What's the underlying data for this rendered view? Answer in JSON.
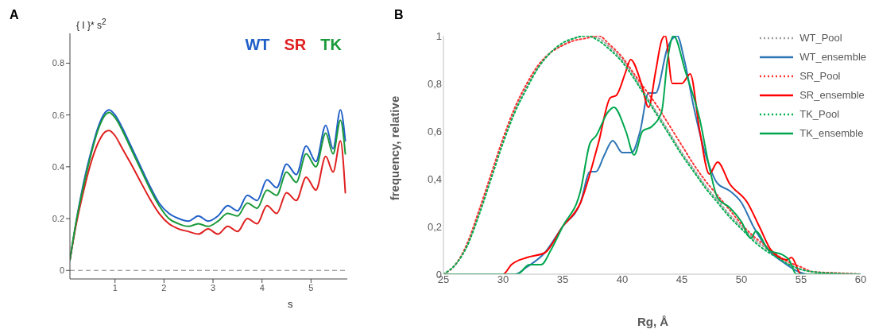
{
  "chart_data": [
    {
      "type": "line",
      "title": "A",
      "ylabel": "{ I }* s$^{2}$",
      "xlabel": "s",
      "xlim": [
        0.08,
        5.74
      ],
      "xticks": [
        1,
        2,
        3,
        4,
        5
      ],
      "ylim": [
        -0.033,
        0.915
      ],
      "yticks": [
        0,
        0.2,
        0.4,
        0.6,
        0.8
      ],
      "legend": "top right",
      "marker": "none",
      "ref_lines": [
        {
          "axis": "y",
          "value": 0,
          "line_style": "dashed",
          "color": "#808080"
        }
      ],
      "series": [
        {
          "name": "WT",
          "color": "#1f5fc8",
          "x": [
            0.08,
            0.2,
            0.35,
            0.5,
            0.65,
            0.8,
            0.88,
            1.0,
            1.15,
            1.3,
            1.5,
            1.7,
            1.9,
            2.1,
            2.3,
            2.5,
            2.7,
            2.9,
            3.1,
            3.3,
            3.5,
            3.7,
            3.9,
            4.1,
            4.3,
            4.5,
            4.7,
            4.9,
            5.1,
            5.3,
            5.45,
            5.6,
            5.7
          ],
          "values": [
            0.04,
            0.18,
            0.33,
            0.45,
            0.55,
            0.61,
            0.62,
            0.6,
            0.55,
            0.49,
            0.41,
            0.33,
            0.26,
            0.22,
            0.2,
            0.19,
            0.21,
            0.19,
            0.21,
            0.25,
            0.23,
            0.29,
            0.27,
            0.35,
            0.32,
            0.41,
            0.37,
            0.48,
            0.42,
            0.56,
            0.47,
            0.62,
            0.5
          ]
        },
        {
          "name": "SR",
          "color": "#e02020",
          "x": [
            0.08,
            0.2,
            0.35,
            0.5,
            0.65,
            0.8,
            0.88,
            1.0,
            1.15,
            1.3,
            1.5,
            1.7,
            1.9,
            2.1,
            2.3,
            2.5,
            2.7,
            2.9,
            3.1,
            3.3,
            3.5,
            3.7,
            3.9,
            4.1,
            4.3,
            4.5,
            4.7,
            4.9,
            5.1,
            5.3,
            5.45,
            5.6,
            5.7
          ],
          "values": [
            0.04,
            0.17,
            0.3,
            0.41,
            0.49,
            0.535,
            0.54,
            0.52,
            0.47,
            0.42,
            0.35,
            0.28,
            0.22,
            0.18,
            0.16,
            0.15,
            0.14,
            0.16,
            0.14,
            0.17,
            0.15,
            0.2,
            0.18,
            0.25,
            0.22,
            0.3,
            0.27,
            0.36,
            0.31,
            0.44,
            0.38,
            0.5,
            0.3
          ]
        },
        {
          "name": "TK",
          "color": "#1a9a3a",
          "x": [
            0.08,
            0.2,
            0.35,
            0.5,
            0.65,
            0.8,
            0.88,
            1.0,
            1.15,
            1.3,
            1.5,
            1.7,
            1.9,
            2.1,
            2.3,
            2.5,
            2.7,
            2.9,
            3.1,
            3.3,
            3.5,
            3.7,
            3.9,
            4.1,
            4.3,
            4.5,
            4.7,
            4.9,
            5.1,
            5.3,
            5.45,
            5.6,
            5.7
          ],
          "values": [
            0.04,
            0.18,
            0.32,
            0.44,
            0.54,
            0.6,
            0.61,
            0.59,
            0.54,
            0.48,
            0.4,
            0.32,
            0.25,
            0.2,
            0.18,
            0.17,
            0.18,
            0.17,
            0.19,
            0.22,
            0.21,
            0.26,
            0.24,
            0.31,
            0.29,
            0.38,
            0.34,
            0.45,
            0.4,
            0.53,
            0.45,
            0.58,
            0.45
          ]
        }
      ]
    },
    {
      "type": "line",
      "title": "B",
      "ylabel": "frequency, relative",
      "xlabel": "Rg, Å",
      "xlim": [
        25,
        60
      ],
      "xticks": [
        25,
        30,
        35,
        40,
        45,
        50,
        55,
        60
      ],
      "ylim": [
        0,
        1
      ],
      "yticks": [
        0,
        {
          "value": 0.2,
          "label": "0,2"
        },
        {
          "value": 0.4,
          "label": "0,4"
        },
        {
          "value": 0.6,
          "label": "0,6"
        },
        {
          "value": 0.8,
          "label": "0,8"
        },
        1
      ],
      "legend": "top right",
      "marker": "none",
      "series": [
        {
          "name": "WT_Pool",
          "color": "#a0a0a0",
          "line_style": "dotted",
          "x": [
            25,
            26,
            27,
            28,
            29,
            30,
            31,
            32,
            33,
            34,
            35,
            36,
            37,
            38,
            39,
            40,
            41,
            42,
            43,
            44,
            45,
            46,
            47,
            48,
            49,
            50,
            51,
            52,
            53,
            54,
            55,
            56,
            58,
            60
          ],
          "values": [
            0,
            0.04,
            0.12,
            0.26,
            0.41,
            0.56,
            0.69,
            0.79,
            0.87,
            0.93,
            0.96,
            0.99,
            1.0,
            0.99,
            0.95,
            0.9,
            0.83,
            0.75,
            0.67,
            0.59,
            0.51,
            0.44,
            0.37,
            0.31,
            0.25,
            0.2,
            0.15,
            0.11,
            0.07,
            0.04,
            0.02,
            0.01,
            0.004,
            0
          ]
        },
        {
          "name": "WT_ensemble",
          "color": "#2e75b6",
          "x": [
            25,
            31,
            32,
            33.5,
            35,
            36.5,
            37.3,
            37.8,
            38.5,
            39.2,
            40,
            40.8,
            41.5,
            42.2,
            42.8,
            43.8,
            44.6,
            45.2,
            46,
            47,
            48,
            49,
            50,
            51,
            52.3,
            53.5,
            54.8,
            55.5,
            60
          ],
          "values": [
            0,
            0,
            0.03,
            0.09,
            0.2,
            0.3,
            0.43,
            0.43,
            0.5,
            0.56,
            0.51,
            0.51,
            0.6,
            0.76,
            0.76,
            0.95,
            1.0,
            0.9,
            0.7,
            0.5,
            0.38,
            0.35,
            0.3,
            0.2,
            0.1,
            0.05,
            0.01,
            0,
            0
          ]
        },
        {
          "name": "SR_Pool",
          "color": "#ff3030",
          "line_style": "dotted",
          "x": [
            25,
            26,
            27,
            28,
            29,
            30,
            31,
            32,
            33,
            34,
            35,
            36,
            37,
            38,
            39,
            40,
            41,
            42,
            43,
            44,
            45,
            46,
            47,
            48,
            49,
            50,
            51,
            52,
            53,
            54,
            55,
            56,
            58,
            60
          ],
          "values": [
            0,
            0.04,
            0.13,
            0.27,
            0.42,
            0.57,
            0.7,
            0.8,
            0.88,
            0.93,
            0.96,
            0.98,
            0.99,
            1.0,
            0.96,
            0.91,
            0.84,
            0.77,
            0.7,
            0.62,
            0.54,
            0.46,
            0.39,
            0.33,
            0.27,
            0.21,
            0.16,
            0.12,
            0.08,
            0.05,
            0.03,
            0.01,
            0.005,
            0
          ]
        },
        {
          "name": "SR_ensemble",
          "color": "#ff0000",
          "x": [
            25,
            30,
            30.7,
            32,
            33.5,
            35,
            36.5,
            38,
            39,
            39.5,
            40.3,
            40.7,
            41.6,
            42.2,
            42.8,
            43.3,
            43.6,
            44.2,
            45,
            45.7,
            46.5,
            47.3,
            48,
            49,
            50.5,
            51.5,
            52.5,
            53.8,
            54.2,
            55,
            60
          ],
          "values": [
            0,
            0,
            0.04,
            0.07,
            0.09,
            0.2,
            0.3,
            0.55,
            0.74,
            0.75,
            0.85,
            0.9,
            0.8,
            0.7,
            0.85,
            0.98,
            1.0,
            0.8,
            0.8,
            0.84,
            0.6,
            0.42,
            0.47,
            0.38,
            0.3,
            0.2,
            0.1,
            0.06,
            0.07,
            0,
            0
          ]
        },
        {
          "name": "TK_Pool",
          "color": "#00b050",
          "line_style": "dotted",
          "x": [
            25,
            26,
            27,
            28,
            29,
            30,
            31,
            32,
            33,
            34,
            35,
            36,
            37,
            38,
            39,
            40,
            41,
            42,
            43,
            44,
            45,
            46,
            47,
            48,
            49,
            50,
            51,
            52,
            53,
            54,
            55,
            56,
            58,
            60
          ],
          "values": [
            0,
            0.04,
            0.12,
            0.25,
            0.4,
            0.55,
            0.68,
            0.78,
            0.87,
            0.93,
            0.97,
            0.99,
            1.0,
            0.98,
            0.94,
            0.89,
            0.82,
            0.74,
            0.66,
            0.58,
            0.5,
            0.43,
            0.36,
            0.3,
            0.24,
            0.19,
            0.14,
            0.1,
            0.07,
            0.04,
            0.02,
            0.01,
            0.003,
            0
          ]
        },
        {
          "name": "TK_ensemble",
          "color": "#00a84f",
          "x": [
            25,
            31.2,
            32.2,
            33.2,
            34,
            35,
            36.5,
            37.3,
            37.8,
            38.8,
            39.3,
            40.3,
            41,
            41.7,
            42.5,
            43.3,
            43.8,
            44.3,
            45.3,
            46.5,
            47.3,
            48,
            49,
            50,
            50.8,
            51.2,
            52.3,
            53.5,
            54,
            54.6,
            60
          ],
          "values": [
            0,
            0,
            0.04,
            0.04,
            0.1,
            0.2,
            0.35,
            0.55,
            0.58,
            0.68,
            0.7,
            0.6,
            0.5,
            0.6,
            0.62,
            0.68,
            0.9,
            1.0,
            0.85,
            0.65,
            0.45,
            0.32,
            0.28,
            0.22,
            0.15,
            0.18,
            0.1,
            0.08,
            0.06,
            0,
            0
          ]
        }
      ]
    }
  ]
}
